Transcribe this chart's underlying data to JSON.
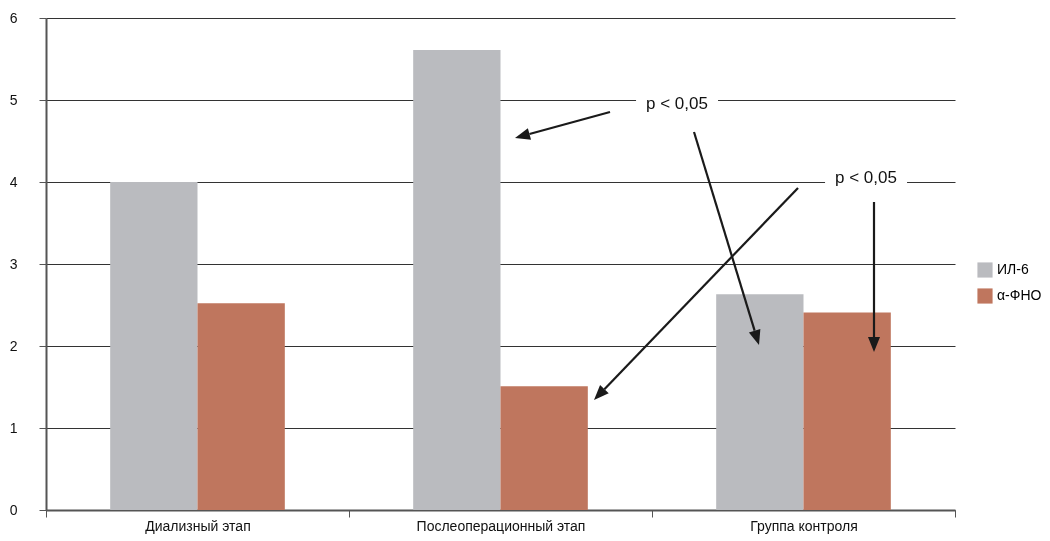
{
  "chart_data": {
    "type": "bar",
    "categories": [
      "Диализный этап",
      "Послеоперационный этап",
      "Группа контроля"
    ],
    "series": [
      {
        "name": "ИЛ-6",
        "color": "#babbbf",
        "values": [
          4.0,
          5.61,
          2.63
        ]
      },
      {
        "name": "α-ФНО",
        "color": "#bf765e",
        "values": [
          2.52,
          1.51,
          2.41
        ]
      }
    ],
    "ylim": [
      0,
      6
    ],
    "yticks": [
      0,
      1,
      2,
      3,
      4,
      5,
      6
    ],
    "grid": "y",
    "legend": "right",
    "annotations": [
      "p < 0,05",
      "p < 0,05"
    ]
  }
}
